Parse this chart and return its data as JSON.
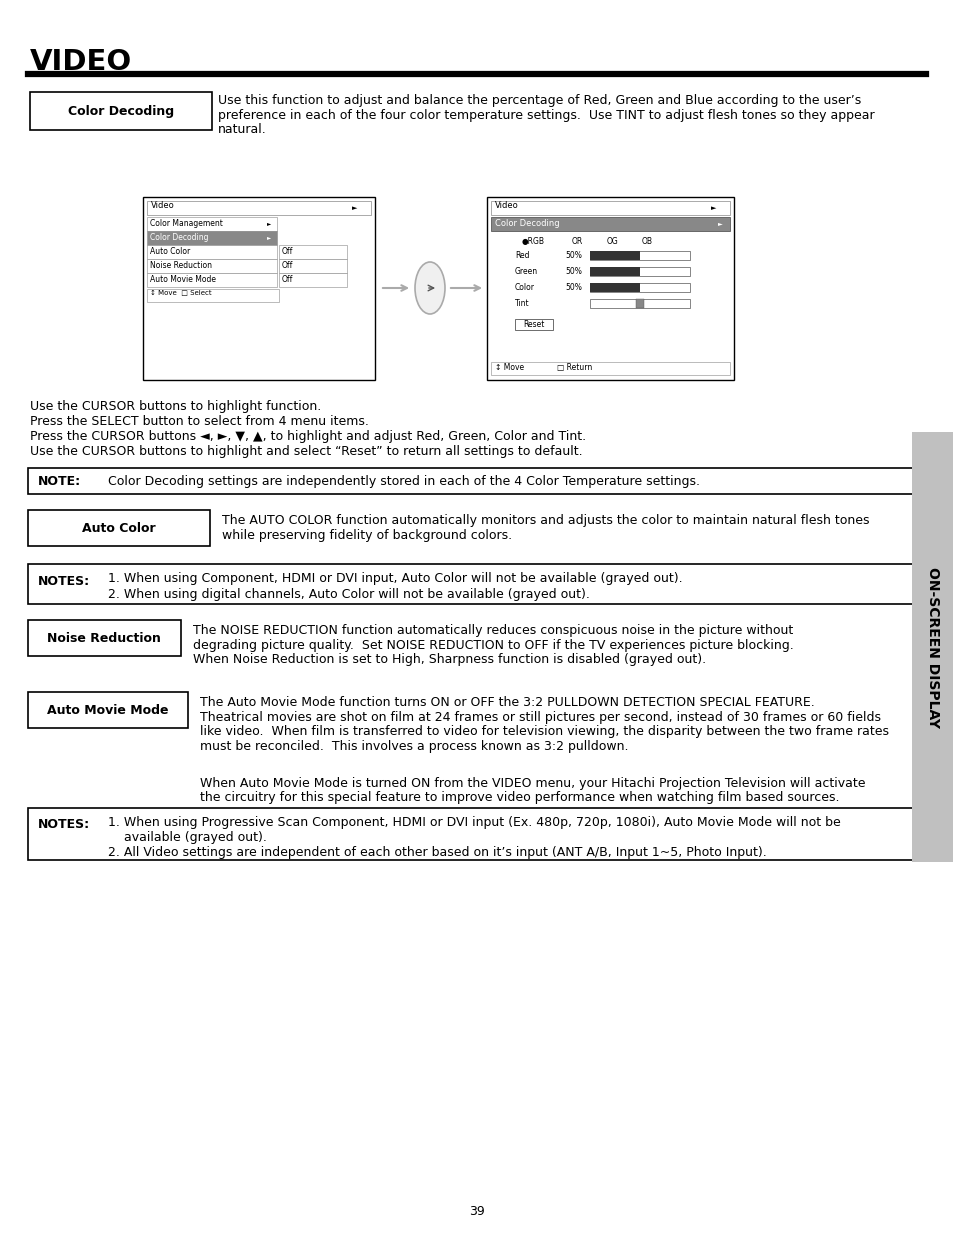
{
  "title": "VIDEO",
  "page_number": "39",
  "bg_color": "#ffffff",
  "text_color": "#000000",
  "sidebar_text": "ON-SCREEN DISPLAY",
  "sidebar_bg": "#c8c8c8",
  "sections": [
    {
      "label": "Color Decoding",
      "description_lines": [
        "Use this function to adjust and balance the percentage of Red, Green and Blue according to the user’s",
        "preference in each of the four color temperature settings.  Use TINT to adjust flesh tones so they appear",
        "natural."
      ]
    },
    {
      "label": "Auto Color",
      "description_lines": [
        "The AUTO COLOR function automatically monitors and adjusts the color to maintain natural flesh tones",
        "while preserving fidelity of background colors."
      ]
    },
    {
      "label": "Noise Reduction",
      "description_lines": [
        "The NOISE REDUCTION function automatically reduces conspicuous noise in the picture without",
        "degrading picture quality.  Set NOISE REDUCTION to OFF if the TV experiences picture blocking.",
        "When Noise Reduction is set to High, Sharpness function is disabled (grayed out)."
      ]
    },
    {
      "label": "Auto Movie Mode",
      "description_lines": [
        "The Auto Movie Mode function turns ON or OFF the 3:2 PULLDOWN DETECTION SPECIAL FEATURE.",
        "Theatrical movies are shot on film at 24 frames or still pictures per second, instead of 30 frames or 60 fields",
        "like video.  When film is transferred to video for television viewing, the disparity between the two frame rates",
        "must be reconciled.  This involves a process known as 3:2 pulldown.",
        "",
        "When Auto Movie Mode is turned ON from the VIDEO menu, your Hitachi Projection Television will activate",
        "the circuitry for this special feature to improve video performance when watching film based sources."
      ]
    }
  ],
  "note_box": {
    "label": "NOTE:",
    "text": "Color Decoding settings are independently stored in each of the 4 Color Temperature settings."
  },
  "notes_box1": {
    "label": "NOTES:",
    "items": [
      "1. When using Component, HDMI or DVI input, Auto Color will not be available (grayed out).",
      "2. When using digital channels, Auto Color will not be available (grayed out)."
    ]
  },
  "notes_box2": {
    "label": "NOTES:",
    "items": [
      "1. When using Progressive Scan Component, HDMI or DVI input (Ex. 480p, 720p, 1080i), Auto Movie Mode will not be",
      "    available (grayed out).",
      "2. All Video settings are independent of each other based on it’s input (ANT A/B, Input 1~5, Photo Input)."
    ]
  },
  "cursor_lines": [
    "Use the CURSOR buttons to highlight function.",
    "Press the SELECT button to select from 4 menu items.",
    "Press the CURSOR buttons ◄, ►, ▼, ▲, to highlight and adjust Red, Green, Color and Tint.",
    "Use the CURSOR buttons to highlight and select “Reset” to return all settings to default."
  ],
  "left_menu_items": [
    [
      "Color Management",
      "",
      false,
      false
    ],
    [
      "Color Decoding",
      "",
      true,
      false
    ],
    [
      "Auto Color",
      "Off",
      false,
      false
    ],
    [
      "Noise Reduction",
      "Off",
      false,
      false
    ],
    [
      "Auto Movie Mode",
      "Off",
      false,
      false
    ]
  ],
  "right_sliders": [
    [
      "Red",
      "50%",
      0.5
    ],
    [
      "Green",
      "50%",
      0.5
    ],
    [
      "Color",
      "50%",
      0.5
    ],
    [
      "Tint",
      "",
      0.5
    ]
  ]
}
